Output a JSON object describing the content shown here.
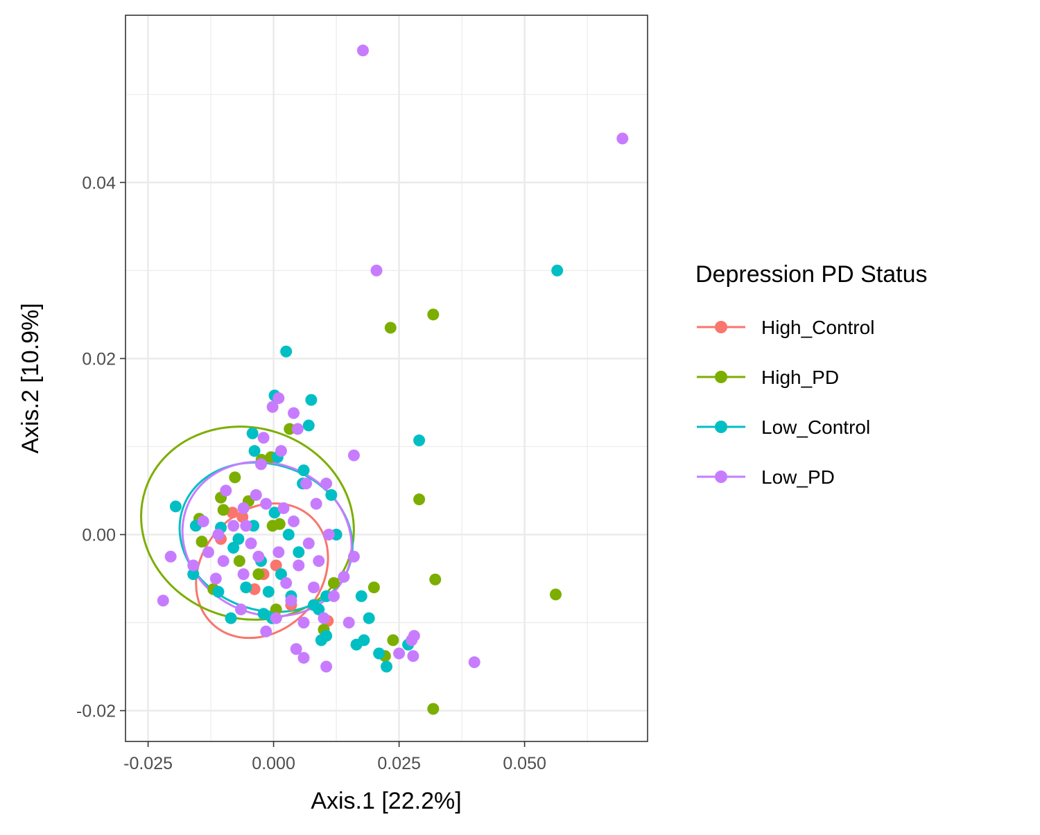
{
  "chart_data": {
    "type": "scatter",
    "title": "",
    "xlabel": "Axis.1   [22.2%]",
    "ylabel": "Axis.2   [10.9%]",
    "xlim": [
      -0.0295,
      0.0745
    ],
    "ylim": [
      -0.0235,
      0.059
    ],
    "x_ticks": [
      -0.025,
      0.0,
      0.025,
      0.05
    ],
    "x_tick_labels": [
      "-0.025",
      "0.000",
      "0.025",
      "0.050"
    ],
    "y_ticks": [
      -0.02,
      0.0,
      0.02,
      0.04
    ],
    "y_tick_labels": [
      "-0.02",
      "0.00",
      "0.02",
      "0.04"
    ],
    "grid": true,
    "legend": {
      "title": "Depression PD Status",
      "position": "right"
    },
    "series": [
      {
        "name": "High_Control",
        "color": "#F8766D",
        "ellipse": {
          "cx": -0.0023,
          "cy": -0.0041,
          "rx": 0.0145,
          "ry": 0.0068,
          "angle": -48
        },
        "points": [
          [
            -0.0082,
            0.0025
          ],
          [
            -0.0062,
            0.002
          ],
          [
            -0.0038,
            -0.0062
          ],
          [
            0.0035,
            -0.008
          ],
          [
            0.0108,
            -0.0098
          ],
          [
            -0.0105,
            -0.0005
          ],
          [
            0.0005,
            -0.0035
          ],
          [
            -0.002,
            -0.0045
          ]
        ]
      },
      {
        "name": "High_PD",
        "color": "#7CAE00",
        "ellipse": {
          "cx": -0.0052,
          "cy": 0.0013,
          "rx": 0.019,
          "ry": 0.0122,
          "angle": -72
        },
        "points": [
          [
            0.0318,
            0.025
          ],
          [
            0.0233,
            0.0235
          ],
          [
            0.029,
            0.004
          ],
          [
            0.0322,
            -0.0051
          ],
          [
            0.0562,
            -0.0068
          ],
          [
            0.0318,
            -0.0198
          ],
          [
            0.02,
            -0.006
          ],
          [
            0.0238,
            -0.012
          ],
          [
            0.0222,
            -0.0138
          ],
          [
            0.0032,
            0.012
          ],
          [
            -0.0024,
            0.0085
          ],
          [
            -0.0005,
            0.0088
          ],
          [
            -0.0077,
            0.0065
          ],
          [
            -0.005,
            0.0038
          ],
          [
            -0.0105,
            0.0042
          ],
          [
            -0.0148,
            0.0018
          ],
          [
            -0.0143,
            -0.0008
          ],
          [
            -0.012,
            -0.0062
          ],
          [
            -0.003,
            -0.0045
          ],
          [
            0.0012,
            0.0012
          ],
          [
            -0.0002,
            0.001
          ],
          [
            0.01,
            -0.0108
          ],
          [
            0.0005,
            -0.0085
          ],
          [
            0.012,
            -0.0055
          ],
          [
            -0.0068,
            -0.003
          ],
          [
            -0.01,
            0.0028
          ]
        ]
      },
      {
        "name": "Low_Control",
        "color": "#00BFC4",
        "ellipse": {
          "cx": -0.0015,
          "cy": -0.0003,
          "rx": 0.0145,
          "ry": 0.01,
          "angle": -70
        },
        "points": [
          [
            0.0565,
            0.03
          ],
          [
            0.0025,
            0.0208
          ],
          [
            0.029,
            0.0107
          ],
          [
            0.0075,
            0.0153
          ],
          [
            0.0002,
            0.0158
          ],
          [
            0.007,
            0.0124
          ],
          [
            -0.0042,
            0.0115
          ],
          [
            0.0008,
            0.0088
          ],
          [
            -0.0038,
            0.0095
          ],
          [
            0.0058,
            0.0058
          ],
          [
            0.006,
            0.0073
          ],
          [
            0.0115,
            0.0045
          ],
          [
            0.0125,
            0.0
          ],
          [
            -0.0195,
            0.0032
          ],
          [
            -0.0155,
            0.001
          ],
          [
            -0.016,
            -0.0045
          ],
          [
            -0.011,
            -0.0065
          ],
          [
            -0.0085,
            -0.0095
          ],
          [
            -0.002,
            -0.009
          ],
          [
            -0.0003,
            -0.0095
          ],
          [
            0.008,
            -0.008
          ],
          [
            0.009,
            -0.0085
          ],
          [
            0.0105,
            -0.0115
          ],
          [
            0.0095,
            -0.012
          ],
          [
            0.0165,
            -0.0125
          ],
          [
            0.018,
            -0.012
          ],
          [
            0.021,
            -0.0135
          ],
          [
            0.0225,
            -0.015
          ],
          [
            0.0268,
            -0.0125
          ],
          [
            0.0175,
            -0.007
          ],
          [
            0.019,
            -0.0095
          ],
          [
            0.0105,
            -0.007
          ],
          [
            -0.0055,
            -0.006
          ],
          [
            -0.001,
            -0.0065
          ],
          [
            0.0035,
            -0.007
          ],
          [
            0.005,
            -0.002
          ],
          [
            -0.007,
            -0.0005
          ],
          [
            -0.004,
            0.001
          ],
          [
            0.0002,
            0.0025
          ],
          [
            -0.0105,
            0.0008
          ],
          [
            -0.008,
            -0.0015
          ],
          [
            0.003,
            0.0
          ],
          [
            -0.0025,
            -0.003
          ],
          [
            0.0015,
            -0.0045
          ]
        ]
      },
      {
        "name": "Low_PD",
        "color": "#C77CFF",
        "ellipse": {
          "cx": -0.0013,
          "cy": -0.0005,
          "rx": 0.015,
          "ry": 0.0098,
          "angle": -66
        },
        "points": [
          [
            0.0178,
            0.055
          ],
          [
            0.0695,
            0.045
          ],
          [
            0.0205,
            0.03
          ],
          [
            0.016,
            0.009
          ],
          [
            0.04,
            -0.0145
          ],
          [
            0.028,
            -0.0115
          ],
          [
            0.0275,
            -0.012
          ],
          [
            0.025,
            -0.0135
          ],
          [
            0.0278,
            -0.0138
          ],
          [
            0.0105,
            -0.015
          ],
          [
            0.006,
            -0.014
          ],
          [
            -0.022,
            -0.0075
          ],
          [
            -0.0205,
            -0.0025
          ],
          [
            -0.016,
            -0.0035
          ],
          [
            0.001,
            0.0155
          ],
          [
            0.004,
            0.0138
          ],
          [
            -0.0002,
            0.0145
          ],
          [
            0.0048,
            0.012
          ],
          [
            -0.002,
            0.011
          ],
          [
            0.0015,
            0.0095
          ],
          [
            -0.0025,
            0.008
          ],
          [
            0.0065,
            0.0058
          ],
          [
            0.0105,
            0.0058
          ],
          [
            0.0085,
            0.0035
          ],
          [
            0.011,
            0.0
          ],
          [
            0.016,
            -0.0025
          ],
          [
            0.014,
            -0.0048
          ],
          [
            0.012,
            -0.007
          ],
          [
            0.008,
            -0.006
          ],
          [
            0.006,
            -0.01
          ],
          [
            0.0035,
            -0.0075
          ],
          [
            0.0005,
            -0.0095
          ],
          [
            -0.0015,
            -0.011
          ],
          [
            -0.0065,
            -0.0085
          ],
          [
            -0.0115,
            -0.005
          ],
          [
            -0.013,
            -0.002
          ],
          [
            -0.014,
            0.0015
          ],
          [
            -0.0095,
            0.005
          ],
          [
            -0.006,
            0.003
          ],
          [
            -0.0035,
            0.0045
          ],
          [
            -0.0015,
            0.0035
          ],
          [
            0.002,
            0.003
          ],
          [
            0.004,
            0.0015
          ],
          [
            0.007,
            -0.001
          ],
          [
            0.009,
            -0.003
          ],
          [
            -0.0045,
            -0.001
          ],
          [
            -0.008,
            0.001
          ],
          [
            -0.003,
            -0.0025
          ],
          [
            0.001,
            -0.002
          ],
          [
            0.005,
            -0.0035
          ],
          [
            -0.006,
            -0.0045
          ],
          [
            -0.01,
            -0.003
          ],
          [
            0.01,
            -0.0095
          ],
          [
            0.0045,
            -0.013
          ],
          [
            0.015,
            -0.01
          ],
          [
            -0.0055,
            0.001
          ],
          [
            -0.011,
            0.0
          ],
          [
            0.0025,
            -0.0055
          ]
        ]
      }
    ]
  }
}
